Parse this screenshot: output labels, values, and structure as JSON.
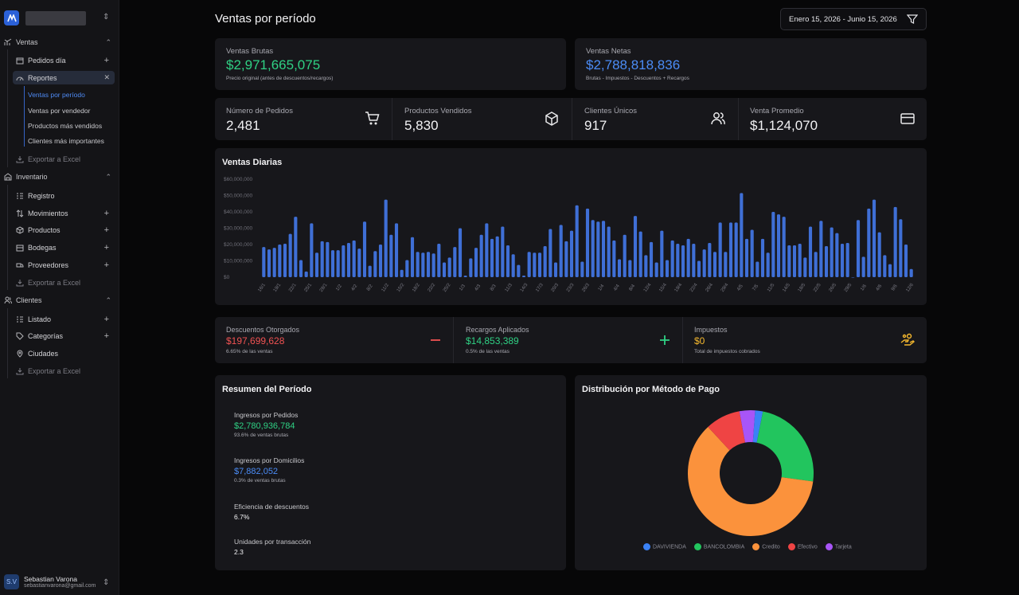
{
  "sidebar": {
    "sections": [
      {
        "label": "Ventas",
        "items": [
          {
            "label": "Pedidos día"
          },
          {
            "label": "Reportes",
            "subitems": [
              "Ventas por período",
              "Ventas por vendedor",
              "Productos más vendidos",
              "Clientes más importantes"
            ]
          },
          {
            "label": "Exportar a Excel"
          }
        ]
      },
      {
        "label": "Inventario",
        "items": [
          {
            "label": "Registro"
          },
          {
            "label": "Movimientos"
          },
          {
            "label": "Productos"
          },
          {
            "label": "Bodegas"
          },
          {
            "label": "Proveedores"
          },
          {
            "label": "Exportar a Excel"
          }
        ]
      },
      {
        "label": "Clientes",
        "items": [
          {
            "label": "Listado"
          },
          {
            "label": "Categorías"
          },
          {
            "label": "Ciudades"
          },
          {
            "label": "Exportar a Excel"
          }
        ]
      }
    ],
    "user": {
      "initials": "S.V",
      "name": "Sebastian Varona",
      "email": "sebastianvarona@gmail.com"
    }
  },
  "header": {
    "title": "Ventas por período",
    "date_range": "Enero 15, 2026 - Junio 15, 2026"
  },
  "summary": {
    "brutas": {
      "label": "Ventas Brutas",
      "value": "$2,971,665,075",
      "note": "Precio original (antes de descuentos/recargos)"
    },
    "netas": {
      "label": "Ventas Netas",
      "value": "$2,788,818,836",
      "note": "Brutas - Impuestos - Descuentos + Recargos"
    }
  },
  "kpis": [
    {
      "label": "Número de Pedidos",
      "value": "2,481",
      "icon": "cart-icon"
    },
    {
      "label": "Productos Vendidos",
      "value": "5,830",
      "icon": "box-icon"
    },
    {
      "label": "Clientes Únicos",
      "value": "917",
      "icon": "users-icon"
    },
    {
      "label": "Venta Promedio",
      "value": "$1,124,070",
      "icon": "credit-card-icon"
    }
  ],
  "daily": {
    "title": "Ventas Diarias"
  },
  "adjust": [
    {
      "label": "Descuentos Otorgados",
      "value": "$197,699,628",
      "note": "6.65% de las ventas",
      "color": "#f05252"
    },
    {
      "label": "Recargos Aplicados",
      "value": "$14,853,389",
      "note": "0.5% de las ventas",
      "color": "#2fd184"
    },
    {
      "label": "Impuestos",
      "value": "$0",
      "note": "Total de impuestos cobrados",
      "color": "#f5b82e"
    }
  ],
  "resumen": {
    "title": "Resumen del Período",
    "rows": [
      {
        "label": "Ingresos por Pedidos",
        "value": "$2,780,936,784",
        "note": "93.6% de ventas brutas"
      },
      {
        "label": "Ingresos por Domicilios",
        "value": "$7,882,052",
        "note": "0.3% de ventas brutas"
      },
      {
        "label": "Eficiencia de descuentos",
        "value": "6.7%"
      },
      {
        "label": "Unidades por transacción",
        "value": "2.3"
      }
    ]
  },
  "chart_data": [
    {
      "type": "bar",
      "title": "Ventas Diarias",
      "ylim": [
        0,
        60000000
      ],
      "yticks": [
        "$60,000,000",
        "$50,000,000",
        "$40,000,000",
        "$30,000,000",
        "$20,000,000",
        "$10,000,000",
        "$0"
      ],
      "xtick_labels": [
        "16/1",
        "19/1",
        "22/1",
        "25/1",
        "28/1",
        "1/2",
        "4/2",
        "8/2",
        "11/2",
        "15/2",
        "18/2",
        "22/2",
        "25/2",
        "1/3",
        "4/3",
        "8/3",
        "11/3",
        "14/3",
        "17/3",
        "20/3",
        "23/3",
        "26/3",
        "1/4",
        "4/4",
        "8/4",
        "12/4",
        "15/4",
        "19/4",
        "22/4",
        "26/4",
        "29/4",
        "4/5",
        "7/5",
        "11/5",
        "14/5",
        "18/5",
        "22/5",
        "26/5",
        "29/5",
        "1/6",
        "4/6",
        "9/6",
        "12/6"
      ],
      "values": [
        18500000,
        17000000,
        18000000,
        20000000,
        20500000,
        26500000,
        37000000,
        10500000,
        3500000,
        33000000,
        15000000,
        22000000,
        21500000,
        16500000,
        16500000,
        19500000,
        21000000,
        22500000,
        17500000,
        34000000,
        7000000,
        16000000,
        20000000,
        47500000,
        26000000,
        33000000,
        4500000,
        10500000,
        24500000,
        15500000,
        15000000,
        15500000,
        14500000,
        20500000,
        9000000,
        12000000,
        18500000,
        30000000,
        1000000,
        11500000,
        18000000,
        26000000,
        33000000,
        23500000,
        25000000,
        31000000,
        19500000,
        14000000,
        7500000,
        1000000,
        15500000,
        15000000,
        15000000,
        19000000,
        29500000,
        9000000,
        32000000,
        22000000,
        28500000,
        44000000,
        9500000,
        42000000,
        35000000,
        34000000,
        34500000,
        31000000,
        22500000,
        11000000,
        26000000,
        10500000,
        37500000,
        28000000,
        13500000,
        21500000,
        9000000,
        28500000,
        10500000,
        22500000,
        20500000,
        19500000,
        23500000,
        20500000,
        10000000,
        17000000,
        21000000,
        15500000,
        33500000,
        15500000,
        33500000,
        33500000,
        51500000,
        23500000,
        29000000,
        9500000,
        23500000,
        15000000,
        40000000,
        38500000,
        37000000,
        19500000,
        19500000,
        20500000,
        12000000,
        31000000,
        15500000,
        34500000,
        19000000,
        30500000,
        27000000,
        20500000,
        21000000,
        0,
        35000000,
        12500000,
        42000000,
        47500000,
        27500000,
        13500000,
        8000000,
        43000000,
        35500000,
        20000000,
        5000000
      ]
    },
    {
      "type": "pie",
      "title": "Distribución por Método de Pago",
      "labels": [
        "DAVIVIENDA",
        "BANCOLOMBIA",
        "Credito",
        "Efectivo",
        "Tarjeta"
      ],
      "values": [
        2,
        24,
        61,
        9,
        4
      ],
      "colors": [
        "#3b82f6",
        "#22c55e",
        "#fb923c",
        "#ef4444",
        "#a855f7"
      ]
    }
  ]
}
